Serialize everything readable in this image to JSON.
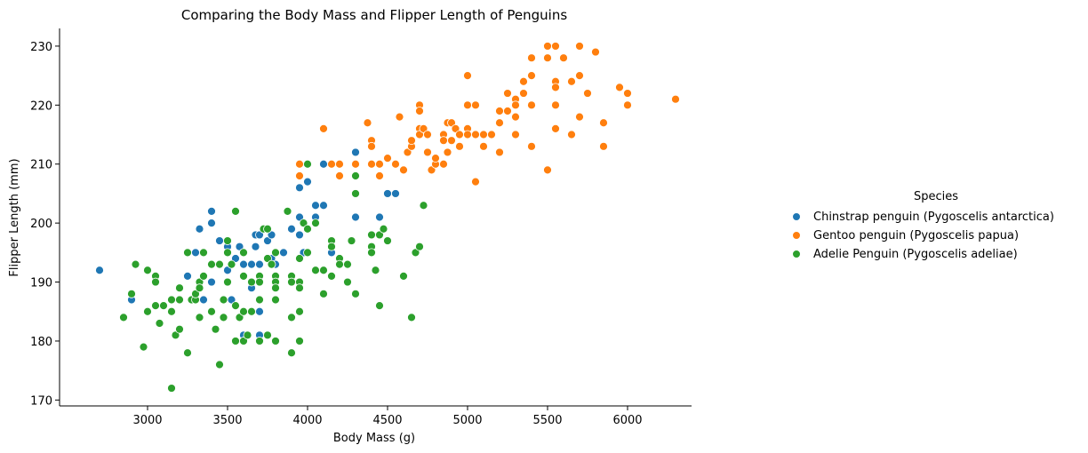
{
  "chart_data": {
    "type": "scatter",
    "title": "Comparing the Body Mass and Flipper Length of Penguins",
    "xlabel": "Body Mass (g)",
    "ylabel": "Flipper Length (mm)",
    "xlim": [
      2450,
      6400
    ],
    "ylim": [
      169,
      233
    ],
    "xticks": [
      3000,
      3500,
      4000,
      4500,
      5000,
      5500,
      6000
    ],
    "yticks": [
      170,
      180,
      190,
      200,
      210,
      220,
      230
    ],
    "grid": false,
    "legend": {
      "title": "Species",
      "position": "right"
    },
    "series": [
      {
        "name": "Chinstrap penguin (Pygoscelis antarctica)",
        "color": "#1f77b4",
        "points": [
          [
            2700,
            192
          ],
          [
            2900,
            187
          ],
          [
            3250,
            191
          ],
          [
            3300,
            195
          ],
          [
            3325,
            199
          ],
          [
            3350,
            187
          ],
          [
            3400,
            202
          ],
          [
            3400,
            200
          ],
          [
            3400,
            190
          ],
          [
            3450,
            197
          ],
          [
            3500,
            196
          ],
          [
            3500,
            192
          ],
          [
            3525,
            187
          ],
          [
            3550,
            194
          ],
          [
            3575,
            196
          ],
          [
            3600,
            195
          ],
          [
            3600,
            193
          ],
          [
            3600,
            181
          ],
          [
            3650,
            193
          ],
          [
            3650,
            189
          ],
          [
            3650,
            185
          ],
          [
            3675,
            198
          ],
          [
            3675,
            196
          ],
          [
            3700,
            198
          ],
          [
            3700,
            193
          ],
          [
            3700,
            185
          ],
          [
            3700,
            181
          ],
          [
            3750,
            197
          ],
          [
            3775,
            194
          ],
          [
            3775,
            198
          ],
          [
            3800,
            193
          ],
          [
            3800,
            190
          ],
          [
            3850,
            195
          ],
          [
            3900,
            199
          ],
          [
            3950,
            210
          ],
          [
            3950,
            206
          ],
          [
            3950,
            201
          ],
          [
            3950,
            198
          ],
          [
            3975,
            195
          ],
          [
            4000,
            207
          ],
          [
            4050,
            203
          ],
          [
            4050,
            201
          ],
          [
            4100,
            203
          ],
          [
            4100,
            210
          ],
          [
            4150,
            195
          ],
          [
            4300,
            212
          ],
          [
            4300,
            201
          ],
          [
            4450,
            201
          ],
          [
            4500,
            205
          ],
          [
            4550,
            205
          ],
          [
            4800,
            210
          ]
        ]
      },
      {
        "name": "Gentoo penguin (Pygoscelis papua)",
        "color": "#ff7f0e",
        "points": [
          [
            3950,
            210
          ],
          [
            3950,
            208
          ],
          [
            4100,
            216
          ],
          [
            4150,
            210
          ],
          [
            4200,
            210
          ],
          [
            4200,
            208
          ],
          [
            4300,
            210
          ],
          [
            4300,
            208
          ],
          [
            4375,
            217
          ],
          [
            4400,
            214
          ],
          [
            4400,
            213
          ],
          [
            4400,
            210
          ],
          [
            4450,
            210
          ],
          [
            4450,
            208
          ],
          [
            4500,
            211
          ],
          [
            4550,
            210
          ],
          [
            4575,
            218
          ],
          [
            4600,
            209
          ],
          [
            4625,
            212
          ],
          [
            4650,
            213
          ],
          [
            4650,
            214
          ],
          [
            4700,
            220
          ],
          [
            4700,
            219
          ],
          [
            4700,
            216
          ],
          [
            4700,
            215
          ],
          [
            4725,
            216
          ],
          [
            4750,
            215
          ],
          [
            4750,
            212
          ],
          [
            4775,
            209
          ],
          [
            4800,
            210
          ],
          [
            4800,
            211
          ],
          [
            4850,
            215
          ],
          [
            4850,
            214
          ],
          [
            4850,
            210
          ],
          [
            4875,
            217
          ],
          [
            4875,
            212
          ],
          [
            4900,
            217
          ],
          [
            4900,
            214
          ],
          [
            4925,
            216
          ],
          [
            4950,
            215
          ],
          [
            4950,
            213
          ],
          [
            5000,
            225
          ],
          [
            5000,
            216
          ],
          [
            5000,
            215
          ],
          [
            5000,
            220
          ],
          [
            5050,
            220
          ],
          [
            5050,
            215
          ],
          [
            5050,
            207
          ],
          [
            5100,
            213
          ],
          [
            5100,
            215
          ],
          [
            5150,
            215
          ],
          [
            5200,
            217
          ],
          [
            5200,
            219
          ],
          [
            5200,
            212
          ],
          [
            5250,
            222
          ],
          [
            5250,
            219
          ],
          [
            5300,
            221
          ],
          [
            5300,
            220
          ],
          [
            5300,
            218
          ],
          [
            5300,
            215
          ],
          [
            5350,
            222
          ],
          [
            5350,
            224
          ],
          [
            5400,
            225
          ],
          [
            5400,
            228
          ],
          [
            5400,
            220
          ],
          [
            5400,
            213
          ],
          [
            5500,
            230
          ],
          [
            5500,
            228
          ],
          [
            5500,
            209
          ],
          [
            5550,
            230
          ],
          [
            5550,
            224
          ],
          [
            5550,
            223
          ],
          [
            5550,
            216
          ],
          [
            5550,
            220
          ],
          [
            5600,
            228
          ],
          [
            5650,
            224
          ],
          [
            5650,
            215
          ],
          [
            5700,
            230
          ],
          [
            5700,
            225
          ],
          [
            5700,
            218
          ],
          [
            5750,
            222
          ],
          [
            5800,
            229
          ],
          [
            5850,
            217
          ],
          [
            5850,
            213
          ],
          [
            5950,
            223
          ],
          [
            6000,
            222
          ],
          [
            6000,
            220
          ],
          [
            6300,
            221
          ]
        ]
      },
      {
        "name": "Adelie Penguin (Pygoscelis adeliae)",
        "color": "#2ca02c",
        "points": [
          [
            2850,
            184
          ],
          [
            2900,
            188
          ],
          [
            2925,
            193
          ],
          [
            2975,
            179
          ],
          [
            3000,
            185
          ],
          [
            3000,
            192
          ],
          [
            3050,
            191
          ],
          [
            3050,
            190
          ],
          [
            3050,
            186
          ],
          [
            3075,
            183
          ],
          [
            3100,
            186
          ],
          [
            3150,
            185
          ],
          [
            3150,
            187
          ],
          [
            3150,
            172
          ],
          [
            3175,
            181
          ],
          [
            3200,
            187
          ],
          [
            3200,
            189
          ],
          [
            3200,
            182
          ],
          [
            3250,
            178
          ],
          [
            3250,
            195
          ],
          [
            3275,
            187
          ],
          [
            3300,
            187
          ],
          [
            3300,
            188
          ],
          [
            3325,
            190
          ],
          [
            3325,
            189
          ],
          [
            3325,
            184
          ],
          [
            3350,
            195
          ],
          [
            3350,
            191
          ],
          [
            3400,
            193
          ],
          [
            3400,
            185
          ],
          [
            3425,
            182
          ],
          [
            3450,
            193
          ],
          [
            3450,
            176
          ],
          [
            3475,
            184
          ],
          [
            3475,
            187
          ],
          [
            3500,
            197
          ],
          [
            3500,
            195
          ],
          [
            3500,
            190
          ],
          [
            3525,
            193
          ],
          [
            3550,
            202
          ],
          [
            3550,
            186
          ],
          [
            3550,
            180
          ],
          [
            3575,
            184
          ],
          [
            3600,
            195
          ],
          [
            3600,
            191
          ],
          [
            3600,
            185
          ],
          [
            3600,
            180
          ],
          [
            3625,
            181
          ],
          [
            3650,
            185
          ],
          [
            3650,
            190
          ],
          [
            3700,
            187
          ],
          [
            3700,
            191
          ],
          [
            3700,
            190
          ],
          [
            3700,
            180
          ],
          [
            3725,
            199
          ],
          [
            3750,
            199
          ],
          [
            3750,
            194
          ],
          [
            3750,
            181
          ],
          [
            3775,
            193
          ],
          [
            3800,
            195
          ],
          [
            3800,
            191
          ],
          [
            3800,
            190
          ],
          [
            3800,
            189
          ],
          [
            3800,
            187
          ],
          [
            3800,
            180
          ],
          [
            3875,
            202
          ],
          [
            3900,
            191
          ],
          [
            3900,
            190
          ],
          [
            3900,
            184
          ],
          [
            3900,
            178
          ],
          [
            3950,
            194
          ],
          [
            3950,
            190
          ],
          [
            3950,
            189
          ],
          [
            3950,
            185
          ],
          [
            3950,
            180
          ],
          [
            3975,
            200
          ],
          [
            4000,
            210
          ],
          [
            4000,
            199
          ],
          [
            4000,
            195
          ],
          [
            4050,
            200
          ],
          [
            4050,
            192
          ],
          [
            4100,
            192
          ],
          [
            4100,
            188
          ],
          [
            4150,
            197
          ],
          [
            4150,
            196
          ],
          [
            4150,
            191
          ],
          [
            4200,
            194
          ],
          [
            4200,
            193
          ],
          [
            4250,
            190
          ],
          [
            4250,
            193
          ],
          [
            4275,
            197
          ],
          [
            4300,
            208
          ],
          [
            4300,
            205
          ],
          [
            4300,
            188
          ],
          [
            4400,
            198
          ],
          [
            4400,
            196
          ],
          [
            4400,
            195
          ],
          [
            4425,
            192
          ],
          [
            4450,
            198
          ],
          [
            4450,
            186
          ],
          [
            4475,
            199
          ],
          [
            4500,
            197
          ],
          [
            4600,
            191
          ],
          [
            4650,
            184
          ],
          [
            4675,
            195
          ],
          [
            4700,
            196
          ],
          [
            4725,
            203
          ]
        ]
      }
    ]
  }
}
